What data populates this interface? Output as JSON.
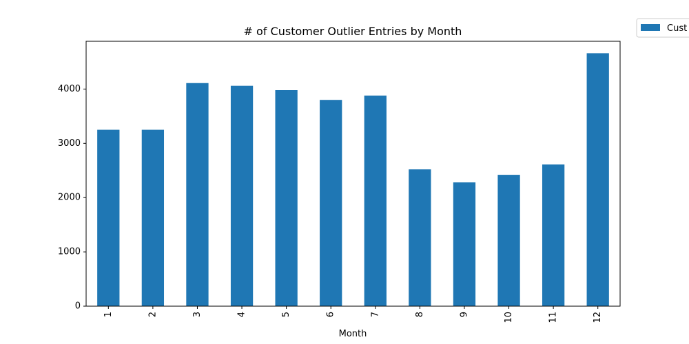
{
  "chart_data": {
    "type": "bar",
    "title": "# of Customer Outlier Entries by Month",
    "xlabel": "Month",
    "ylabel": "",
    "categories": [
      "1",
      "2",
      "3",
      "4",
      "5",
      "6",
      "7",
      "8",
      "9",
      "10",
      "11",
      "12"
    ],
    "series": [
      {
        "name": "Cust",
        "color": "#1f77b4",
        "values": [
          3250,
          3250,
          4110,
          4060,
          3980,
          3800,
          3880,
          2520,
          2280,
          2420,
          2610,
          4660
        ]
      }
    ],
    "ylim": [
      0,
      4880
    ],
    "yticks": [
      0,
      1000,
      2000,
      3000,
      4000
    ],
    "ytick_labels": [
      "0",
      "1000",
      "2000",
      "3000",
      "4000"
    ],
    "grid": false,
    "legend_position": "outside-top-right"
  }
}
